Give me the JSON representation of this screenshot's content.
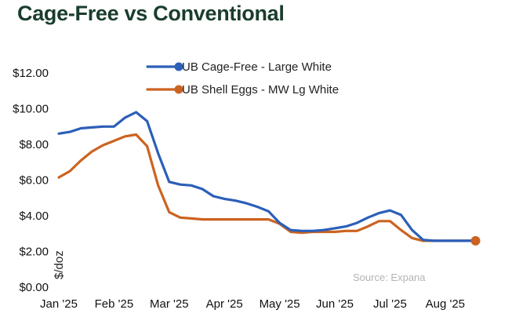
{
  "chart_data": {
    "type": "line",
    "title": "Cage-Free vs Conventional",
    "ylabel": "$/doz",
    "xlabel": "",
    "source": "Source: Expana",
    "ylim": [
      0,
      12
    ],
    "yticks": [
      "$0.00",
      "$2.00",
      "$4.00",
      "$6.00",
      "$8.00",
      "$10.00",
      "$12.00"
    ],
    "xticks": [
      {
        "label": "Jan '25",
        "pos": 0
      },
      {
        "label": "Feb '25",
        "pos": 4
      },
      {
        "label": "Mar '25",
        "pos": 8
      },
      {
        "label": "Apr '25",
        "pos": 12
      },
      {
        "label": "May '25",
        "pos": 16
      },
      {
        "label": "Jun '25",
        "pos": 20
      },
      {
        "label": "Jul '25",
        "pos": 24
      },
      {
        "label": "Aug '25",
        "pos": 28
      }
    ],
    "x": [
      0,
      0.8,
      1.6,
      2.4,
      3.2,
      4.0,
      4.8,
      5.6,
      6.4,
      7.2,
      8.0,
      8.8,
      9.6,
      10.4,
      11.2,
      12.0,
      12.8,
      13.6,
      14.4,
      15.2,
      16.0,
      16.8,
      17.6,
      18.4,
      19.2,
      20.0,
      20.8,
      21.6,
      22.4,
      23.2,
      24.0,
      24.8,
      25.6,
      26.4,
      27.2,
      28.0,
      28.8,
      29.6,
      30.2
    ],
    "series": [
      {
        "name": "UB Cage-Free - Large White",
        "color": "#2b5fb8",
        "values": [
          8.6,
          8.7,
          8.9,
          8.95,
          9.0,
          9.0,
          9.5,
          9.8,
          9.3,
          7.5,
          5.9,
          5.75,
          5.7,
          5.5,
          5.1,
          4.95,
          4.85,
          4.7,
          4.5,
          4.25,
          3.6,
          3.2,
          3.15,
          3.15,
          3.2,
          3.3,
          3.4,
          3.6,
          3.9,
          4.15,
          4.3,
          4.05,
          3.2,
          2.65,
          2.6,
          2.6,
          2.6,
          2.6,
          2.6
        ]
      },
      {
        "name": "UB Shell Eggs - MW Lg White",
        "color": "#cc6320",
        "values": [
          6.15,
          6.5,
          7.1,
          7.6,
          7.95,
          8.2,
          8.45,
          8.55,
          7.9,
          5.7,
          4.2,
          3.9,
          3.85,
          3.8,
          3.8,
          3.8,
          3.8,
          3.8,
          3.8,
          3.8,
          3.55,
          3.1,
          3.05,
          3.1,
          3.1,
          3.1,
          3.15,
          3.15,
          3.4,
          3.7,
          3.7,
          3.2,
          2.75,
          2.6,
          2.6,
          2.6,
          2.6,
          2.6,
          2.6
        ]
      }
    ],
    "legend_position": "top-center",
    "grid": false
  }
}
